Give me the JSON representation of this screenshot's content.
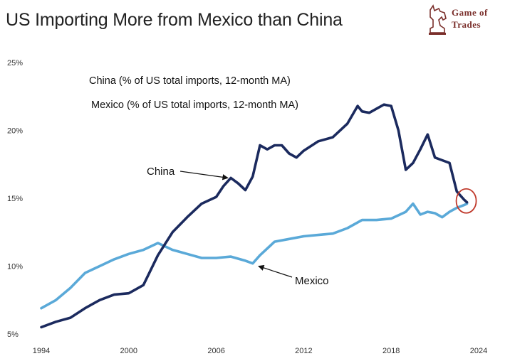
{
  "title": "US Importing More from Mexico than China",
  "logo": {
    "line1": "Game of",
    "line2": "Trades"
  },
  "colors": {
    "china": "#1b2a5e",
    "mexico": "#5aa9d8",
    "highlight_circle": "#c0392b",
    "logo": "#7a2e2a"
  },
  "chart_data": {
    "type": "line",
    "title": "US Importing More from Mexico than China",
    "xlabel": "",
    "ylabel": "",
    "xlim": [
      1994,
      2024
    ],
    "ylim": [
      5,
      25
    ],
    "x_ticks": [
      1994,
      2000,
      2006,
      2012,
      2018,
      2024
    ],
    "y_ticks": [
      5,
      10,
      15,
      20,
      25
    ],
    "y_tick_labels": [
      "5%",
      "10%",
      "15%",
      "20%",
      "25%"
    ],
    "grid": false,
    "legend": [
      "China (% of US total imports, 12-month MA)",
      "Mexico (% of US total imports, 12-month MA)"
    ],
    "legend_position": "top-left",
    "series": [
      {
        "name": "China",
        "x": [
          1994,
          1995,
          1996,
          1997,
          1998,
          1999,
          2000,
          2001,
          2002,
          2003,
          2004,
          2005,
          2006,
          2006.5,
          2007,
          2007.5,
          2008,
          2008.5,
          2009,
          2009.5,
          2010,
          2010.5,
          2011,
          2011.5,
          2012,
          2013,
          2014,
          2015,
          2015.7,
          2016,
          2016.5,
          2017,
          2017.5,
          2018,
          2018.5,
          2019,
          2019.5,
          2020,
          2020.5,
          2021,
          2021.5,
          2022,
          2022.5,
          2023,
          2023.2
        ],
        "y": [
          5.5,
          5.9,
          6.2,
          6.9,
          7.5,
          7.9,
          8.0,
          8.6,
          10.8,
          12.5,
          13.6,
          14.6,
          15.1,
          15.9,
          16.5,
          16.1,
          15.6,
          16.6,
          18.9,
          18.6,
          18.9,
          18.9,
          18.3,
          18.0,
          18.5,
          19.2,
          19.5,
          20.5,
          21.8,
          21.4,
          21.3,
          21.6,
          21.9,
          21.8,
          20.0,
          17.1,
          17.6,
          18.6,
          19.7,
          18.0,
          17.8,
          17.6,
          15.5,
          14.9,
          14.7
        ]
      },
      {
        "name": "Mexico",
        "x": [
          1994,
          1995,
          1996,
          1997,
          1998,
          1999,
          2000,
          2001,
          2002,
          2003,
          2004,
          2005,
          2006,
          2007,
          2008,
          2008.5,
          2009,
          2010,
          2011,
          2012,
          2013,
          2014,
          2015,
          2016,
          2017,
          2018,
          2019,
          2019.5,
          2020,
          2020.5,
          2021,
          2021.5,
          2022,
          2022.5,
          2023,
          2023.2
        ],
        "y": [
          6.9,
          7.5,
          8.4,
          9.5,
          10.0,
          10.5,
          10.9,
          11.2,
          11.7,
          11.2,
          10.9,
          10.6,
          10.6,
          10.7,
          10.4,
          10.2,
          10.8,
          11.8,
          12.0,
          12.2,
          12.3,
          12.4,
          12.8,
          13.4,
          13.4,
          13.5,
          14.0,
          14.6,
          13.8,
          14.0,
          13.9,
          13.6,
          14.0,
          14.3,
          14.5,
          14.6
        ]
      }
    ],
    "annotations": [
      {
        "text": "China",
        "series": "China",
        "arrow_to": [
          2006.8,
          16.5
        ]
      },
      {
        "text": "Mexico",
        "series": "Mexico",
        "arrow_to": [
          2008.9,
          10.0
        ]
      }
    ],
    "highlight": {
      "x": 2023.1,
      "y": 14.7,
      "note": "red circle around latest crossover"
    }
  }
}
